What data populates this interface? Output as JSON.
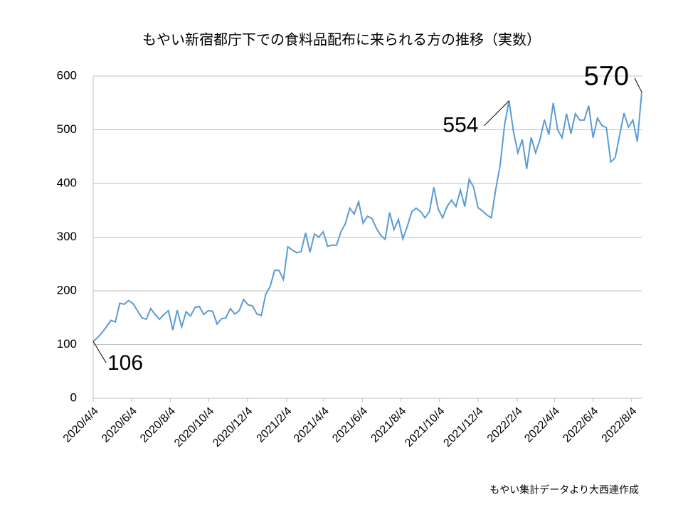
{
  "chart_data": {
    "type": "line",
    "title": "もやい新宿都庁下での食料品配布に来られる方の推移（実数）",
    "source": "もやい集計データより大西連作成",
    "x": [
      "2020/4/4",
      "2020/4/11",
      "2020/4/18",
      "2020/4/25",
      "2020/5/2",
      "2020/5/9",
      "2020/5/16",
      "2020/5/23",
      "2020/5/30",
      "2020/6/6",
      "2020/6/13",
      "2020/6/20",
      "2020/6/27",
      "2020/7/4",
      "2020/7/11",
      "2020/7/18",
      "2020/7/25",
      "2020/8/1",
      "2020/8/8",
      "2020/8/15",
      "2020/8/22",
      "2020/8/29",
      "2020/9/5",
      "2020/9/12",
      "2020/9/19",
      "2020/9/26",
      "2020/10/3",
      "2020/10/10",
      "2020/10/17",
      "2020/10/24",
      "2020/10/31",
      "2020/11/7",
      "2020/11/14",
      "2020/11/21",
      "2020/11/28",
      "2020/12/5",
      "2020/12/12",
      "2020/12/19",
      "2020/12/26",
      "2021/1/2",
      "2021/1/9",
      "2021/1/16",
      "2021/1/23",
      "2021/1/30",
      "2021/2/6",
      "2021/2/13",
      "2021/2/20",
      "2021/2/27",
      "2021/3/6",
      "2021/3/13",
      "2021/3/20",
      "2021/3/27",
      "2021/4/3",
      "2021/4/10",
      "2021/4/17",
      "2021/4/24",
      "2021/5/1",
      "2021/5/8",
      "2021/5/15",
      "2021/5/22",
      "2021/5/29",
      "2021/6/5",
      "2021/6/12",
      "2021/6/19",
      "2021/6/26",
      "2021/7/3",
      "2021/7/10",
      "2021/7/17",
      "2021/7/24",
      "2021/7/31",
      "2021/8/7",
      "2021/8/14",
      "2021/8/21",
      "2021/8/28",
      "2021/9/4",
      "2021/9/11",
      "2021/9/18",
      "2021/9/25",
      "2021/10/2",
      "2021/10/9",
      "2021/10/16",
      "2021/10/23",
      "2021/10/30",
      "2021/11/6",
      "2021/11/13",
      "2021/11/20",
      "2021/11/27",
      "2021/12/4",
      "2021/12/11",
      "2021/12/18",
      "2021/12/25",
      "2022/1/1",
      "2022/1/8",
      "2022/1/15",
      "2022/1/22",
      "2022/1/29",
      "2022/2/5",
      "2022/2/12",
      "2022/2/19",
      "2022/2/26",
      "2022/3/5",
      "2022/3/12",
      "2022/3/19",
      "2022/3/26",
      "2022/4/2",
      "2022/4/9",
      "2022/4/16",
      "2022/4/23",
      "2022/4/30",
      "2022/5/7",
      "2022/5/14",
      "2022/5/21",
      "2022/5/28",
      "2022/6/4",
      "2022/6/11",
      "2022/6/18",
      "2022/6/25",
      "2022/7/2",
      "2022/7/9",
      "2022/7/16",
      "2022/7/23",
      "2022/7/30",
      "2022/8/6",
      "2022/8/13",
      "2022/8/20"
    ],
    "series": [
      {
        "color": "#5b9bd5",
        "values": [
          106,
          113,
          122,
          133,
          145,
          142,
          177,
          175,
          182,
          176,
          163,
          150,
          147,
          167,
          156,
          147,
          156,
          163,
          127,
          164,
          133,
          161,
          153,
          169,
          171,
          156,
          163,
          162,
          138,
          148,
          150,
          167,
          157,
          163,
          184,
          174,
          172,
          157,
          154,
          194,
          208,
          238,
          238,
          221,
          282,
          276,
          271,
          273,
          308,
          272,
          306,
          300,
          310,
          283,
          285,
          285,
          310,
          325,
          354,
          343,
          366,
          326,
          339,
          335,
          317,
          303,
          296,
          346,
          314,
          333,
          297,
          320,
          347,
          354,
          348,
          336,
          347,
          393,
          352,
          336,
          357,
          369,
          357,
          388,
          357,
          408,
          393,
          355,
          349,
          341,
          336,
          389,
          434,
          510,
          554,
          497,
          457,
          482,
          427,
          486,
          457,
          482,
          519,
          491,
          550,
          500,
          485,
          530,
          493,
          530,
          518,
          518,
          545,
          485,
          522,
          508,
          504,
          440,
          448,
          490,
          531,
          505,
          518,
          478,
          570
        ],
        "value_labels": [
          "106",
          null,
          null,
          null,
          null,
          null,
          null,
          null,
          null,
          null,
          null,
          null,
          null,
          null,
          null,
          null,
          null,
          null,
          null,
          null,
          null,
          null,
          null,
          null,
          null,
          null,
          null,
          null,
          null,
          null,
          null,
          null,
          null,
          null,
          null,
          null,
          null,
          null,
          null,
          null,
          null,
          null,
          null,
          null,
          null,
          null,
          null,
          null,
          null,
          null,
          null,
          null,
          null,
          null,
          null,
          null,
          null,
          null,
          null,
          null,
          null,
          null,
          null,
          null,
          null,
          null,
          null,
          null,
          null,
          null,
          null,
          null,
          null,
          null,
          null,
          null,
          null,
          null,
          null,
          null,
          null,
          null,
          null,
          null,
          null,
          null,
          null,
          null,
          null,
          null,
          null,
          null,
          null,
          null,
          "554",
          null,
          null,
          null,
          null,
          null,
          null,
          null,
          null,
          null,
          null,
          null,
          null,
          null,
          null,
          null,
          null,
          null,
          null,
          null,
          null,
          null,
          null,
          null,
          null,
          null,
          null,
          null,
          null,
          null,
          "570"
        ]
      }
    ],
    "xlim": [
      "2020/4/4",
      "2022/8/20"
    ],
    "xticks": [
      "2020/4/4",
      "2020/6/4",
      "2020/8/4",
      "2020/10/4",
      "2020/12/4",
      "2021/2/4",
      "2021/4/4",
      "2021/6/4",
      "2021/8/4",
      "2021/10/4",
      "2021/12/4",
      "2022/2/4",
      "2022/4/4",
      "2022/6/4",
      "2022/8/4"
    ],
    "ylim": [
      0,
      600
    ],
    "yticks": [
      0,
      100,
      200,
      300,
      400,
      500,
      600
    ],
    "grid": true
  }
}
